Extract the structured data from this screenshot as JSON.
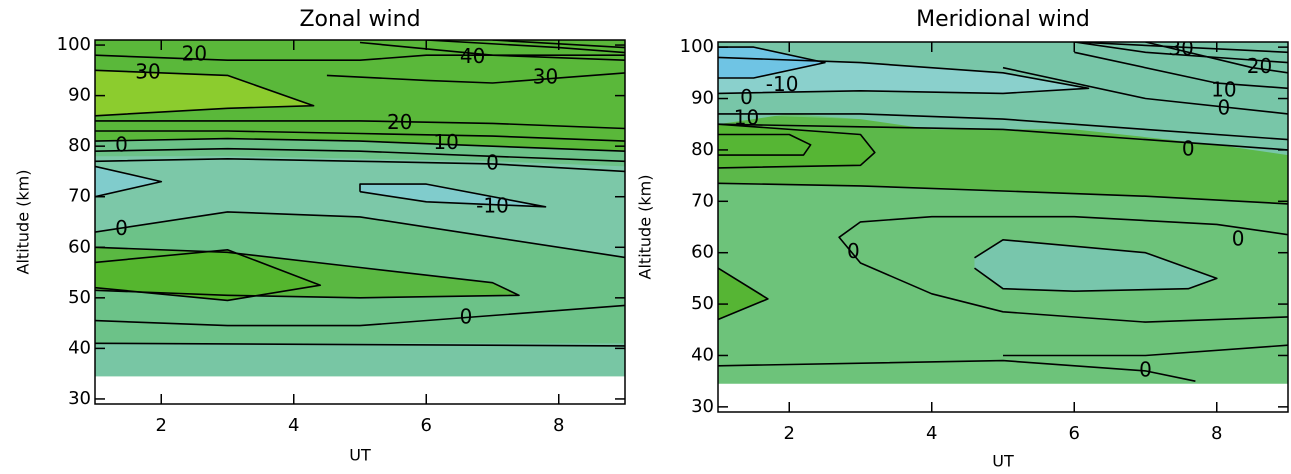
{
  "chart_data": [
    {
      "type": "contour",
      "title": "Zonal wind",
      "xlabel": "UT",
      "ylabel": "Altitude (km)",
      "xlim": [
        1,
        9
      ],
      "ylim": [
        29,
        101
      ],
      "xticks": [
        2,
        4,
        6,
        8
      ],
      "yticks": [
        30,
        40,
        50,
        60,
        70,
        80,
        90,
        100
      ],
      "fills": [
        {
          "color": "#6cc288",
          "x": [
            1,
            9,
            9,
            1
          ],
          "y": [
            34.5,
            34.5,
            101,
            101
          ]
        },
        {
          "color": "#78c6a4",
          "x": [
            1,
            9,
            9,
            1
          ],
          "y": [
            34.5,
            34.5,
            41,
            41
          ]
        },
        {
          "color": "#7cc8a8",
          "x": [
            1,
            3,
            5,
            7,
            9,
            9,
            7,
            5,
            3,
            1
          ],
          "y": [
            63,
            67,
            66,
            62,
            58,
            76,
            77,
            77.5,
            78,
            78
          ]
        },
        {
          "color": "#5ab842",
          "x": [
            1,
            3,
            5,
            7.4,
            7,
            5,
            3,
            1
          ],
          "y": [
            51.5,
            50.5,
            50,
            50.5,
            53,
            56,
            59,
            60
          ]
        },
        {
          "color": "#55b62e",
          "x": [
            1,
            3,
            4.4,
            4,
            3,
            1
          ],
          "y": [
            52,
            49.5,
            52.5,
            54.5,
            59.5,
            57
          ]
        },
        {
          "color": "#5ab83a",
          "x": [
            1,
            3,
            5,
            7,
            9,
            9,
            1
          ],
          "y": [
            81,
            81.5,
            81,
            80,
            79,
            101,
            101
          ]
        },
        {
          "color": "#8ccc2e",
          "x": [
            1,
            3,
            4.3,
            3,
            1
          ],
          "y": [
            86,
            87.5,
            88,
            94,
            95
          ]
        },
        {
          "color": "#80cccc",
          "x": [
            5,
            6,
            7.8,
            6,
            5
          ],
          "y": [
            71,
            69,
            68,
            72.5,
            72.5
          ]
        },
        {
          "color": "#80cccc",
          "x": [
            1,
            2,
            1
          ],
          "y": [
            70,
            73,
            76
          ]
        }
      ],
      "contours": [
        {
          "level": 0,
          "x": [
            1,
            9
          ],
          "y": [
            41,
            40.5
          ]
        },
        {
          "level": 0,
          "x": [
            1,
            3,
            5,
            7,
            9
          ],
          "y": [
            45.5,
            44.5,
            44.5,
            46.5,
            48.5
          ]
        },
        {
          "level": 10,
          "x": [
            1,
            3,
            5,
            7.4,
            7,
            5,
            3,
            1
          ],
          "y": [
            51.5,
            50.5,
            50,
            50.5,
            53,
            56,
            59,
            60
          ]
        },
        {
          "level": 10,
          "x": [
            1,
            3,
            4.4,
            4,
            3,
            1
          ],
          "y": [
            52,
            49.5,
            52.5,
            54.5,
            59.5,
            57
          ]
        },
        {
          "level": 0,
          "x": [
            1,
            3,
            5,
            7,
            9
          ],
          "y": [
            63,
            67,
            66,
            62,
            58
          ]
        },
        {
          "level": -10,
          "x": [
            5,
            6,
            7.8,
            6,
            5,
            5
          ],
          "y": [
            71,
            69,
            68,
            72.5,
            72.5,
            71
          ]
        },
        {
          "level": -10,
          "x": [
            1,
            2,
            1
          ],
          "y": [
            70,
            73,
            76
          ]
        },
        {
          "level": 0,
          "x": [
            1,
            3,
            5,
            7,
            9
          ],
          "y": [
            77,
            77.5,
            77,
            76.5,
            75
          ]
        },
        {
          "level": 0,
          "x": [
            1,
            3,
            5,
            7,
            9
          ],
          "y": [
            79,
            79.5,
            79,
            78,
            77
          ]
        },
        {
          "level": 0,
          "x": [
            1,
            3,
            5,
            7,
            9
          ],
          "y": [
            81,
            81.5,
            81,
            80,
            79
          ]
        },
        {
          "level": 10,
          "x": [
            1,
            3,
            5,
            7,
            9
          ],
          "y": [
            83,
            83,
            82.5,
            82,
            81
          ]
        },
        {
          "level": 20,
          "x": [
            1,
            3,
            5,
            7,
            9
          ],
          "y": [
            85,
            85,
            85,
            84.5,
            83.5
          ]
        },
        {
          "level": 30,
          "x": [
            1,
            3,
            4.3,
            3,
            1
          ],
          "y": [
            86,
            87.5,
            88,
            94,
            95
          ]
        },
        {
          "level": 20,
          "x": [
            1,
            3,
            5,
            6,
            9
          ],
          "y": [
            98,
            97,
            97,
            98,
            98
          ]
        },
        {
          "level": 30,
          "x": [
            4.5,
            6,
            7,
            9
          ],
          "y": [
            94,
            93,
            92.5,
            94.5
          ]
        },
        {
          "level": 40,
          "x": [
            5,
            7,
            9
          ],
          "y": [
            100.5,
            98,
            97
          ]
        },
        {
          "level": 50,
          "x": [
            6,
            8,
            9
          ],
          "y": [
            101,
            99.5,
            98.5
          ]
        },
        {
          "level": 60,
          "x": [
            7,
            9
          ],
          "y": [
            101,
            99.5
          ]
        }
      ],
      "labels": [
        {
          "value": 20,
          "x": 2.5,
          "y": 98
        },
        {
          "value": 30,
          "x": 1.8,
          "y": 94.5
        },
        {
          "value": 40,
          "x": 6.7,
          "y": 97.5
        },
        {
          "value": 30,
          "x": 7.8,
          "y": 93.5
        },
        {
          "value": 20,
          "x": 5.6,
          "y": 84.5
        },
        {
          "value": 10,
          "x": 6.3,
          "y": 80.5
        },
        {
          "value": 0,
          "x": 1.4,
          "y": 80
        },
        {
          "value": 0,
          "x": 7.0,
          "y": 76.5
        },
        {
          "value": -10,
          "x": 7.0,
          "y": 68
        },
        {
          "value": 0,
          "x": 1.4,
          "y": 63.5
        },
        {
          "value": 0,
          "x": 6.6,
          "y": 46
        }
      ]
    },
    {
      "type": "contour",
      "title": "Meridional wind",
      "xlabel": "UT",
      "ylabel": "Altitude (km)",
      "xlim": [
        1,
        9
      ],
      "ylim": [
        29,
        101
      ],
      "xticks": [
        2,
        4,
        6,
        8
      ],
      "yticks": [
        30,
        40,
        50,
        60,
        70,
        80,
        90,
        100
      ],
      "fills": [
        {
          "color": "#6dc37a",
          "x": [
            1,
            9,
            9,
            1
          ],
          "y": [
            34.5,
            34.5,
            101,
            101
          ]
        },
        {
          "color": "#5cb84a",
          "x": [
            1,
            3,
            5,
            7,
            9,
            9,
            7,
            5,
            3,
            1
          ],
          "y": [
            73.5,
            73,
            72,
            71,
            69.5,
            90,
            88,
            87,
            86,
            87
          ]
        },
        {
          "color": "#78c6a8",
          "x": [
            1,
            2,
            3,
            4,
            6,
            8,
            9,
            9,
            1
          ],
          "y": [
            85,
            87,
            86,
            84,
            84,
            81,
            79,
            101,
            101
          ]
        },
        {
          "color": "#56b634",
          "x": [
            1,
            3,
            3.2,
            3,
            1
          ],
          "y": [
            76.5,
            77,
            79.5,
            83,
            85
          ]
        },
        {
          "color": "#8ad0cc",
          "x": [
            1,
            3,
            5,
            6.2,
            5,
            3,
            1
          ],
          "y": [
            91,
            91.5,
            91,
            92,
            95,
            97,
            98
          ]
        },
        {
          "color": "#6fc4e4",
          "x": [
            1,
            1.5,
            2.5,
            1.5,
            1
          ],
          "y": [
            94,
            94,
            97,
            100,
            100
          ]
        },
        {
          "color": "#78c6ac",
          "x": [
            4.6,
            5,
            6,
            7.6,
            8,
            7,
            5,
            4.6
          ],
          "y": [
            57,
            53,
            52.5,
            53,
            55,
            60,
            62.5,
            59
          ]
        },
        {
          "color": "#56b534",
          "x": [
            1,
            1.7,
            1
          ],
          "y": [
            47,
            51,
            57
          ]
        }
      ],
      "contours": [
        {
          "level": 0,
          "x": [
            1,
            5,
            7,
            7.7
          ],
          "y": [
            38,
            39,
            37,
            35
          ]
        },
        {
          "level": 0,
          "x": [
            5,
            7,
            9
          ],
          "y": [
            40,
            40,
            42
          ]
        },
        {
          "level": 10,
          "x": [
            1,
            1.7,
            1
          ],
          "y": [
            47,
            51,
            57
          ]
        },
        {
          "level": 0,
          "x": [
            9,
            8,
            6,
            4,
            3,
            2.7,
            3,
            4,
            5,
            7,
            9
          ],
          "y": [
            63.5,
            65.5,
            67,
            67,
            66,
            63,
            58,
            52,
            48.5,
            46.5,
            47.5
          ]
        },
        {
          "level": -10,
          "x": [
            4.6,
            5,
            6,
            7.6,
            8,
            7,
            5,
            4.6
          ],
          "y": [
            57,
            53,
            52.5,
            53,
            55,
            60,
            62.5,
            59
          ]
        },
        {
          "level": 10,
          "x": [
            1,
            3,
            5,
            7,
            9
          ],
          "y": [
            73.5,
            73,
            72,
            71,
            69.5
          ]
        },
        {
          "level": 20,
          "x": [
            1,
            3,
            3.2,
            3,
            1
          ],
          "y": [
            76.5,
            77,
            79.5,
            83,
            85
          ]
        },
        {
          "level": 30,
          "x": [
            1,
            2.2,
            2.3,
            2,
            1
          ],
          "y": [
            79,
            79,
            81,
            83,
            83
          ]
        },
        {
          "level": 0,
          "x": [
            1,
            3,
            5,
            7,
            9
          ],
          "y": [
            85,
            84.5,
            84,
            82,
            80
          ]
        },
        {
          "level": 0,
          "x": [
            1,
            3,
            5,
            7,
            9
          ],
          "y": [
            87,
            87,
            86,
            84,
            82
          ]
        },
        {
          "level": -10,
          "x": [
            1,
            3,
            5,
            6.2,
            5,
            3,
            1
          ],
          "y": [
            91,
            91.5,
            91,
            92,
            95,
            97,
            98
          ]
        },
        {
          "level": -20,
          "x": [
            1,
            1.5,
            2.5,
            1.5,
            1
          ],
          "y": [
            94,
            94,
            97,
            100,
            100
          ]
        },
        {
          "level": 0,
          "x": [
            5,
            7,
            9
          ],
          "y": [
            96,
            90,
            87
          ]
        },
        {
          "level": 10,
          "x": [
            6,
            8,
            9
          ],
          "y": [
            99,
            93,
            92
          ]
        },
        {
          "level": 20,
          "x": [
            7,
            8.5,
            9
          ],
          "y": [
            101,
            96,
            95
          ]
        },
        {
          "level": 30,
          "x": [
            6,
            7,
            9
          ],
          "y": [
            101,
            99,
            97
          ]
        },
        {
          "level": 40,
          "x": [
            6,
            9
          ],
          "y": [
            101,
            99
          ]
        }
      ],
      "labels": [
        {
          "value": -10,
          "x": 1.9,
          "y": 92.5
        },
        {
          "value": 0,
          "x": 1.4,
          "y": 90
        },
        {
          "value": 10,
          "x": 1.4,
          "y": 86
        },
        {
          "value": 0,
          "x": 8.1,
          "y": 88
        },
        {
          "value": 10,
          "x": 8.1,
          "y": 91.5
        },
        {
          "value": 20,
          "x": 8.6,
          "y": 96
        },
        {
          "value": 30,
          "x": 7.5,
          "y": 99.5
        },
        {
          "value": 0,
          "x": 7.6,
          "y": 80
        },
        {
          "value": 0,
          "x": 8.3,
          "y": 62.5
        },
        {
          "value": 0,
          "x": 2.9,
          "y": 60
        },
        {
          "value": 0,
          "x": 7.0,
          "y": 37
        }
      ]
    }
  ]
}
